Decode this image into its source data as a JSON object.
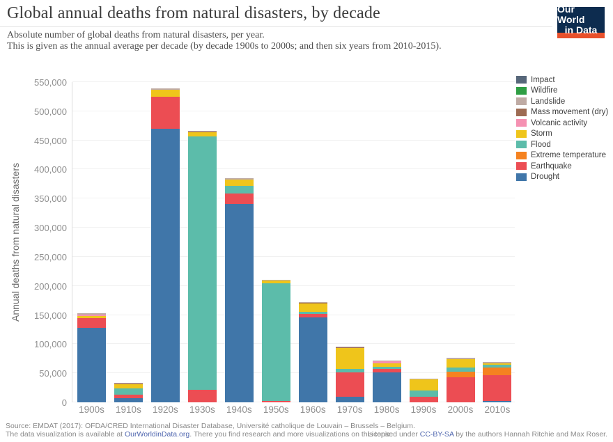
{
  "header": {
    "title": "Global annual deaths from natural disasters, by decade",
    "subtitle_lines": [
      "Absolute number of global deaths from natural disasters, per year.",
      "This is given as the annual average per decade (by decade 1900s to 2000s; and then six years from 2010-2015)."
    ],
    "logo": {
      "line1": "Our World",
      "line2": "in Data",
      "bg_color": "#0d2c4f",
      "stripe_color": "#e8502b"
    }
  },
  "chart_data": {
    "type": "bar",
    "stacked": true,
    "title": "Global annual deaths from natural disasters, by decade",
    "xlabel": "",
    "ylabel": "Annual deaths from natural disasters",
    "ylim": [
      0,
      550000
    ],
    "ytick_step": 50000,
    "ytick_labels": [
      "0",
      "50,000",
      "100,000",
      "150,000",
      "200,000",
      "250,000",
      "300,000",
      "350,000",
      "400,000",
      "450,000",
      "500,000",
      "550,000"
    ],
    "grid": "faint-horizontal-lines",
    "legend_position": "top-right",
    "categories": [
      "1900s",
      "1910s",
      "1920s",
      "1930s",
      "1940s",
      "1950s",
      "1960s",
      "1970s",
      "1980s",
      "1990s",
      "2000s",
      "2010s"
    ],
    "series": [
      {
        "name": "Impact",
        "color": "#57677a",
        "values": [
          0,
          0,
          0,
          0,
          0,
          0,
          0,
          0,
          0,
          0,
          0,
          0
        ]
      },
      {
        "name": "Wildfire",
        "color": "#2f9e44",
        "values": [
          0,
          0,
          0,
          0,
          0,
          0,
          0,
          0,
          0,
          0,
          0,
          0
        ]
      },
      {
        "name": "Landslide",
        "color": "#bfaba4",
        "values": [
          2500,
          1500,
          2000,
          1500,
          2000,
          1500,
          1000,
          1500,
          1500,
          2000,
          2500,
          1500
        ]
      },
      {
        "name": "Mass movement (dry)",
        "color": "#9d6b53",
        "values": [
          0,
          1000,
          0,
          1000,
          0,
          0,
          1000,
          1000,
          0,
          0,
          0,
          0
        ]
      },
      {
        "name": "Volcanic activity",
        "color": "#f591b2",
        "values": [
          2500,
          0,
          0,
          0,
          0,
          0,
          0,
          0,
          2500,
          0,
          0,
          0
        ]
      },
      {
        "name": "Storm",
        "color": "#efc51b",
        "values": [
          3500,
          7000,
          12000,
          7000,
          11000,
          5000,
          14000,
          35000,
          6000,
          19000,
          15000,
          2500
        ]
      },
      {
        "name": "Flood",
        "color": "#5cbcaa",
        "values": [
          0,
          11000,
          0,
          436000,
          13000,
          202000,
          4000,
          7000,
          3500,
          11000,
          6500,
          5000
        ]
      },
      {
        "name": "Extreme temperature",
        "color": "#f58220",
        "values": [
          0,
          0,
          0,
          0,
          0,
          0,
          0,
          0,
          0,
          0,
          10000,
          13000
        ]
      },
      {
        "name": "Earthquake",
        "color": "#ec4d53",
        "values": [
          17000,
          6000,
          55000,
          21000,
          18000,
          2000,
          6000,
          41000,
          7000,
          9000,
          43000,
          45000
        ]
      },
      {
        "name": "Drought",
        "color": "#4076a9",
        "values": [
          128000,
          7000,
          470000,
          0,
          341000,
          0,
          146000,
          10000,
          51000,
          0,
          0,
          2000
        ]
      }
    ]
  },
  "footer": {
    "source_line": "Source: EMDAT (2017): OFDA/CRED International Disaster Database, Université catholique de Louvain – Brussels – Belgium.",
    "availability_prefix": "The data visualization is available at ",
    "availability_link": "OurWorldinData.org",
    "availability_suffix": ". There you find research and more visualizations on this topic.",
    "license_prefix": "Licensed under ",
    "license_link": "CC-BY-SA",
    "license_suffix": " by the authors Hannah Ritchie and Max Roser."
  }
}
